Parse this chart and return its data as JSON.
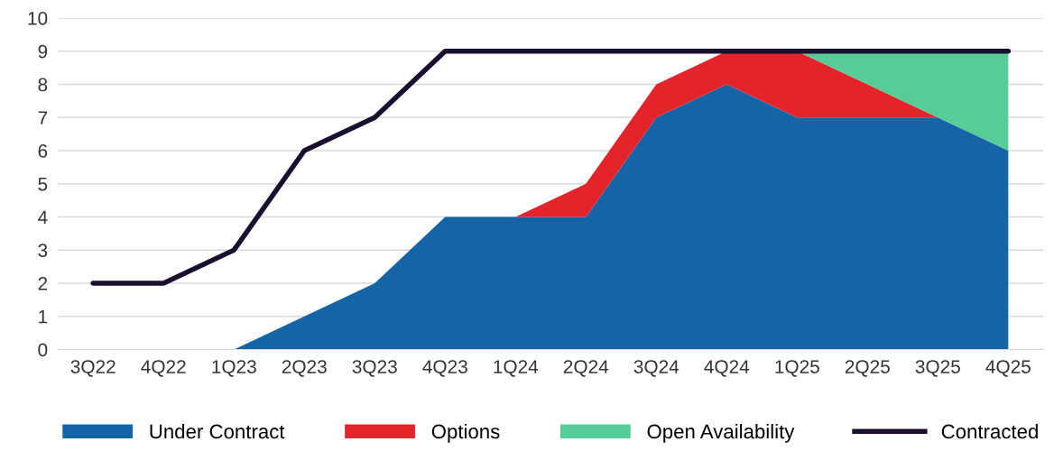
{
  "chart_data": {
    "type": "area",
    "stacked": true,
    "categories": [
      "3Q22",
      "4Q22",
      "1Q23",
      "2Q23",
      "3Q23",
      "4Q23",
      "1Q24",
      "2Q24",
      "3Q24",
      "4Q24",
      "1Q25",
      "2Q25",
      "3Q25",
      "4Q25"
    ],
    "series": [
      {
        "name": "Under Contract",
        "color": "#1565a6",
        "values": [
          null,
          null,
          0,
          1,
          2,
          4,
          4,
          4,
          7,
          8,
          7,
          7,
          7,
          6
        ]
      },
      {
        "name": "Options",
        "color": "#e3242b",
        "values": [
          null,
          null,
          null,
          null,
          null,
          null,
          0,
          1,
          1,
          1,
          2,
          1,
          0,
          0
        ]
      },
      {
        "name": "Open Availability",
        "color": "#56cc96",
        "values": [
          null,
          null,
          null,
          null,
          null,
          null,
          null,
          null,
          null,
          null,
          0,
          1,
          2,
          3
        ]
      },
      {
        "name": "Contracted",
        "type": "line",
        "color": "#1a0f2e",
        "values": [
          2,
          2,
          3,
          6,
          7,
          9,
          9,
          9,
          9,
          9,
          9,
          9,
          9,
          9
        ]
      }
    ],
    "ylim": [
      0,
      10
    ],
    "yticks": [
      0,
      1,
      2,
      3,
      4,
      5,
      6,
      7,
      8,
      9,
      10
    ],
    "grid": "y",
    "legend": "bottom",
    "marker": "none",
    "line_style": "solid"
  }
}
